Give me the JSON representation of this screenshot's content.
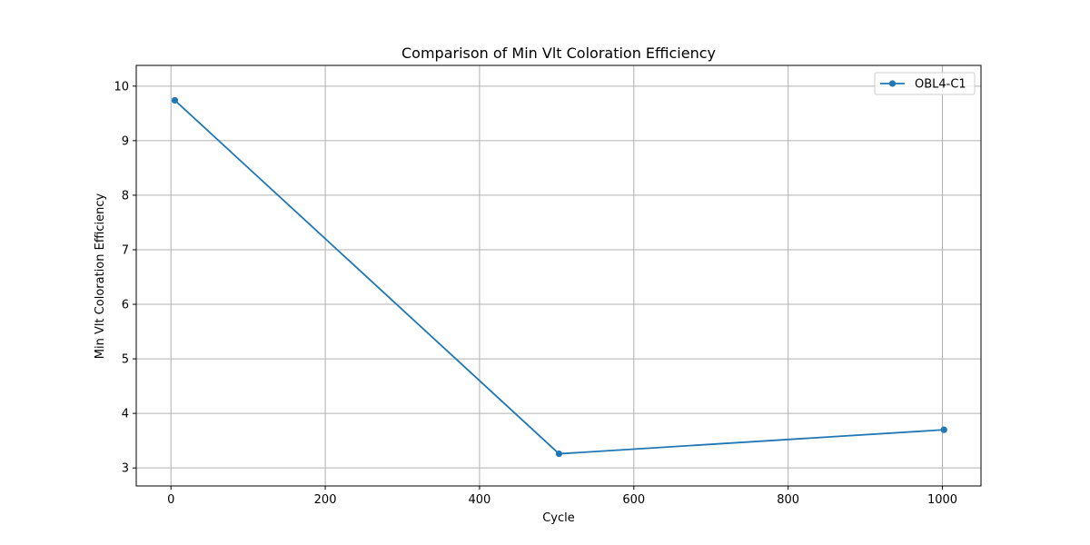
{
  "chart_data": {
    "type": "line",
    "title": "Comparison of Min Vlt Coloration Efficiency",
    "xlabel": "Cycle",
    "ylabel": "Min Vlt Coloration Efficiency",
    "xlim": [
      -45,
      1050
    ],
    "ylim": [
      2.67,
      10.38
    ],
    "xticks": [
      0,
      200,
      400,
      600,
      800,
      1000
    ],
    "yticks": [
      3,
      4,
      5,
      6,
      7,
      8,
      9,
      10
    ],
    "grid": true,
    "legend_position": "top-right",
    "series": [
      {
        "name": "OBL4-C1",
        "color": "#1f77b4",
        "marker": "circle",
        "x": [
          5,
          503,
          1002
        ],
        "y": [
          9.74,
          3.26,
          3.7
        ]
      }
    ]
  }
}
